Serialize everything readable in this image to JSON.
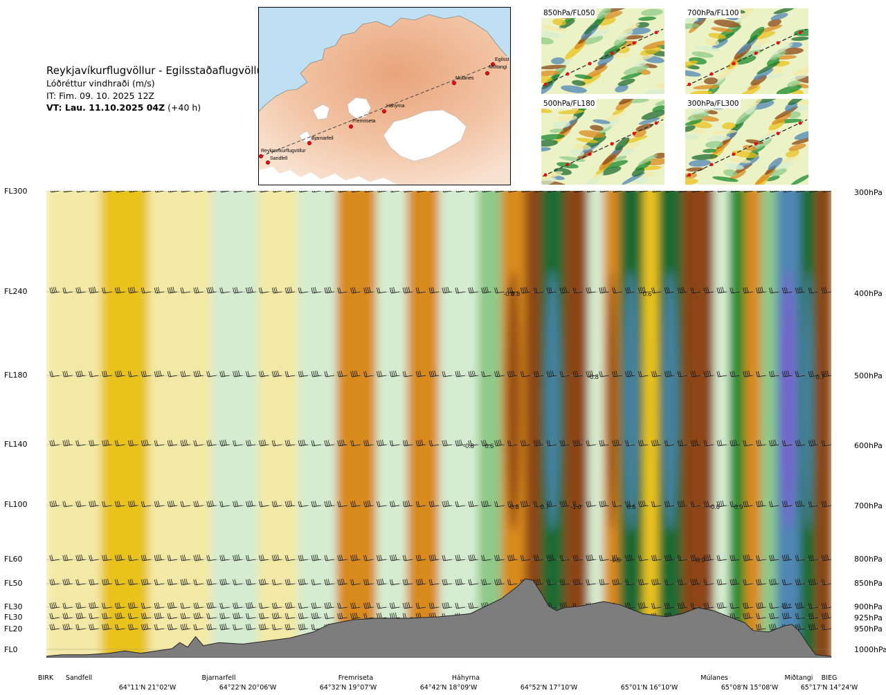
{
  "header": {
    "route": "Reykjavíkurflugvöllur - Egilsstaðaflugvöllur",
    "parameter": "Lóðréttur vindhraði (m/s)",
    "init_time": "IT: Fim. 09. 10. 2025 12Z",
    "valid_label": "VT: Lau. 11.10.2025 04Z",
    "lead_time": "(+40 h)"
  },
  "map": {
    "stations": [
      "Reykjavíkurflugvöllur",
      "Sandfell",
      "Bjarnarfell",
      "Fremriseta",
      "Háhyrna",
      "Múlanes",
      "Egilsst",
      "Miðtangi"
    ]
  },
  "mini_maps": [
    {
      "label": "850hPa/FL050"
    },
    {
      "label": "700hPa/FL100"
    },
    {
      "label": "500hPa/FL180"
    },
    {
      "label": "300hPa/FL300"
    }
  ],
  "colors": {
    "strong_down": "#8b4513",
    "down": "#d98a1c",
    "weak_down": "#e9c21d",
    "slight_down": "#f3e9a6",
    "neutral": "#fbfbe6",
    "slight_up": "#d5ecd0",
    "weak_up": "#8fc98a",
    "up": "#1a8a2e",
    "strong_up": "#1f6b33",
    "very_strong_up": "#4f86b4",
    "extreme_up": "#7a5fd0",
    "terrain": "#7d7d7d"
  },
  "chart_data": {
    "type": "heatmap",
    "title": "",
    "xlabel": "",
    "ylabel": "",
    "flight_levels": [
      "FL300",
      "FL240",
      "FL180",
      "FL140",
      "FL100",
      "FL60",
      "FL50",
      "FL30",
      "FL30",
      "FL20",
      "FL0"
    ],
    "pressure_levels": [
      "300hPa",
      "400hPa",
      "500hPa",
      "600hPa",
      "700hPa",
      "800hPa",
      "850hPa",
      "900hPa",
      "925hPa",
      "950hPa",
      "1000hPa"
    ],
    "locations": [
      "BIRK",
      "Sandfell",
      "Bjarnarfell",
      "Fremriseta",
      "Háhyrna",
      "Múlanes",
      "Miðtangi",
      "BIEG"
    ],
    "coordinates": [
      "64°11'N 21°02'W",
      "64°22'N 20°06'W",
      "64°32'N 19°07'W",
      "64°42'N 18°09'W",
      "64°52'N 17°10'W",
      "65°01'N 16°10'W",
      "65°08'N 15°08'W",
      "65°17'N 14°24'W"
    ],
    "value_labels": [
      "-0.8",
      "0.8",
      "-0.8",
      "0.6",
      "-0.8",
      "0.7",
      "-1.0",
      "0.6",
      "0.6",
      "-0.6",
      "0.9",
      "-0.5",
      "0.9",
      "-0.7",
      "0.7",
      "-0.8"
    ],
    "columns": [
      {
        "x": 0.0,
        "w": 0.07,
        "v": -0.15
      },
      {
        "x": 0.07,
        "w": 0.06,
        "v": -0.25
      },
      {
        "x": 0.13,
        "w": 0.08,
        "v": -0.1
      },
      {
        "x": 0.21,
        "w": 0.06,
        "v": 0.15
      },
      {
        "x": 0.27,
        "w": 0.05,
        "v": -0.1
      },
      {
        "x": 0.32,
        "w": 0.05,
        "v": 0.15
      },
      {
        "x": 0.37,
        "w": 0.05,
        "v": -0.55
      },
      {
        "x": 0.42,
        "w": 0.04,
        "v": 0.2
      },
      {
        "x": 0.46,
        "w": 0.04,
        "v": -0.5
      },
      {
        "x": 0.5,
        "w": 0.05,
        "v": 0.2
      },
      {
        "x": 0.55,
        "w": 0.03,
        "v": 0.35
      },
      {
        "x": 0.58,
        "w": 0.03,
        "v": -0.6
      },
      {
        "x": 0.61,
        "w": 0.02,
        "v": -0.8
      },
      {
        "x": 0.63,
        "w": 0.03,
        "v": 0.65
      },
      {
        "x": 0.66,
        "w": 0.03,
        "v": -0.8
      },
      {
        "x": 0.69,
        "w": 0.02,
        "v": 0.1
      },
      {
        "x": 0.71,
        "w": 0.02,
        "v": -0.6
      },
      {
        "x": 0.73,
        "w": 0.03,
        "v": 0.75
      },
      {
        "x": 0.76,
        "w": 0.02,
        "v": -0.3
      },
      {
        "x": 0.78,
        "w": 0.03,
        "v": 0.7
      },
      {
        "x": 0.81,
        "w": 0.04,
        "v": -0.8
      },
      {
        "x": 0.85,
        "w": 0.02,
        "v": 0.1
      },
      {
        "x": 0.87,
        "w": 0.02,
        "v": 0.5
      },
      {
        "x": 0.89,
        "w": 0.02,
        "v": -0.5
      },
      {
        "x": 0.91,
        "w": 0.02,
        "v": 0.3
      },
      {
        "x": 0.93,
        "w": 0.03,
        "v": 0.85
      },
      {
        "x": 0.96,
        "w": 0.02,
        "v": 0.75
      },
      {
        "x": 0.98,
        "w": 0.02,
        "v": -0.8
      }
    ],
    "terrain_profile": [
      [
        0.0,
        0.0
      ],
      [
        0.02,
        0.1
      ],
      [
        0.05,
        0.1
      ],
      [
        0.08,
        0.2
      ],
      [
        0.1,
        0.35
      ],
      [
        0.12,
        0.2
      ],
      [
        0.16,
        0.5
      ],
      [
        0.17,
        0.9
      ],
      [
        0.18,
        0.6
      ],
      [
        0.19,
        1.3
      ],
      [
        0.2,
        0.7
      ],
      [
        0.22,
        0.9
      ],
      [
        0.25,
        0.8
      ],
      [
        0.28,
        1.0
      ],
      [
        0.31,
        1.2
      ],
      [
        0.34,
        1.6
      ],
      [
        0.36,
        2.1
      ],
      [
        0.39,
        2.4
      ],
      [
        0.42,
        2.5
      ],
      [
        0.46,
        2.5
      ],
      [
        0.5,
        2.6
      ],
      [
        0.54,
        2.8
      ],
      [
        0.56,
        3.3
      ],
      [
        0.58,
        3.8
      ],
      [
        0.6,
        4.6
      ],
      [
        0.61,
        5.1
      ],
      [
        0.62,
        5.0
      ],
      [
        0.63,
        4.2
      ],
      [
        0.64,
        3.3
      ],
      [
        0.65,
        3.0
      ],
      [
        0.66,
        3.2
      ],
      [
        0.68,
        3.3
      ],
      [
        0.71,
        3.6
      ],
      [
        0.73,
        3.4
      ],
      [
        0.76,
        2.8
      ],
      [
        0.79,
        2.6
      ],
      [
        0.81,
        2.8
      ],
      [
        0.83,
        3.2
      ],
      [
        0.85,
        3.0
      ],
      [
        0.87,
        2.6
      ],
      [
        0.89,
        2.2
      ],
      [
        0.9,
        1.7
      ],
      [
        0.92,
        1.6
      ],
      [
        0.94,
        2.0
      ],
      [
        0.95,
        2.1
      ],
      [
        0.96,
        1.6
      ],
      [
        0.97,
        0.8
      ],
      [
        0.98,
        0.1
      ],
      [
        1.0,
        0.0
      ]
    ]
  }
}
